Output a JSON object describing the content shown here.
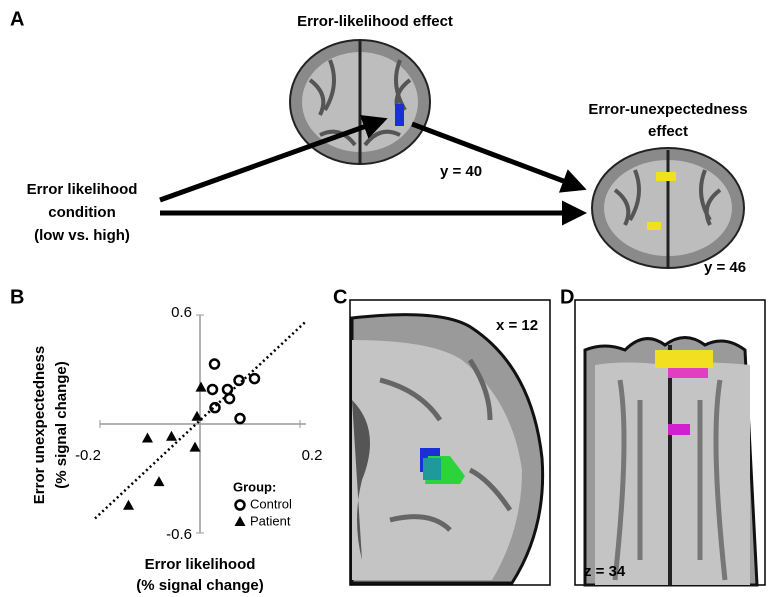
{
  "panel_labels": [
    "A",
    "B",
    "C",
    "D"
  ],
  "panel_a": {
    "left_title": "Error-likelihood effect",
    "left_slice": "y = 40",
    "right_title": [
      "Error-unexpectedness",
      "effect"
    ],
    "right_slice": "y = 46",
    "condition": [
      "Error likelihood",
      "condition",
      "(low vs. high)"
    ]
  },
  "chart_data": {
    "type": "scatter",
    "xlabel": [
      "Error likelihood",
      "(% signal change)"
    ],
    "ylabel": [
      "Error unexpectedness",
      "(% signal change)"
    ],
    "xlim": [
      -0.2,
      0.2
    ],
    "ylim": [
      -0.6,
      0.6
    ],
    "xticks": [
      -0.2,
      0.2
    ],
    "yticks": [
      -0.6,
      0.6
    ],
    "legend_title": "Group:",
    "legend": "lower right",
    "series": [
      {
        "name": "Control",
        "marker": "open-circle",
        "color": "#000000",
        "x": [
          0.029,
          0.025,
          0.055,
          0.078,
          0.109,
          0.059,
          0.03,
          0.08
        ],
        "values": [
          0.33,
          0.19,
          0.19,
          0.24,
          0.25,
          0.14,
          0.09,
          0.03
        ]
      },
      {
        "name": "Patient",
        "marker": "triangle",
        "color": "#000000",
        "x": [
          0.002,
          -0.006,
          -0.057,
          -0.105,
          -0.01,
          -0.082,
          -0.143
        ],
        "values": [
          0.2,
          0.04,
          -0.07,
          -0.08,
          -0.13,
          -0.32,
          -0.45
        ]
      }
    ],
    "fit_line": {
      "x": [
        -0.21,
        0.21
      ],
      "values": [
        -0.52,
        0.56
      ]
    }
  },
  "panel_c": {
    "slice": "x = 12"
  },
  "panel_d": {
    "slice": "z = 34"
  }
}
